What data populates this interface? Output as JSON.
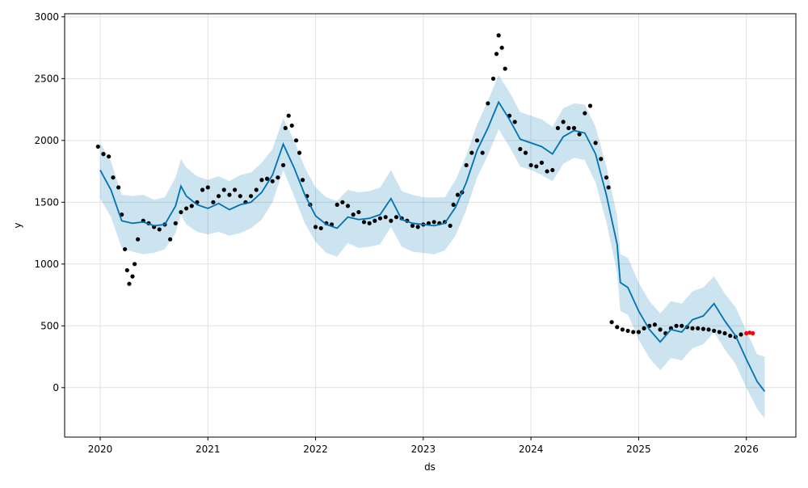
{
  "chart_data": {
    "type": "forecast",
    "xlabel": "ds",
    "ylabel": "y",
    "xlim": [
      2019.67,
      2026.46
    ],
    "ylim": [
      -400,
      3025
    ],
    "xticks": [
      2020,
      2021,
      2022,
      2023,
      2024,
      2025,
      2026
    ],
    "yticks": [
      0,
      500,
      1000,
      1500,
      2000,
      2500,
      3000
    ],
    "grid": true,
    "observed": {
      "color": "#000000",
      "x": [
        2019.98,
        2020.03,
        2020.08,
        2020.12,
        2020.17,
        2020.2,
        2020.23,
        2020.25,
        2020.27,
        2020.3,
        2020.32,
        2020.35,
        2020.4,
        2020.45,
        2020.5,
        2020.55,
        2020.6,
        2020.65,
        2020.7,
        2020.75,
        2020.8,
        2020.85,
        2020.9,
        2020.95,
        2021.0,
        2021.05,
        2021.1,
        2021.15,
        2021.2,
        2021.25,
        2021.3,
        2021.35,
        2021.4,
        2021.45,
        2021.5,
        2021.55,
        2021.6,
        2021.65,
        2021.7,
        2021.72,
        2021.75,
        2021.78,
        2021.82,
        2021.85,
        2021.88,
        2021.92,
        2021.95,
        2022.0,
        2022.05,
        2022.1,
        2022.15,
        2022.2,
        2022.25,
        2022.3,
        2022.35,
        2022.4,
        2022.45,
        2022.5,
        2022.55,
        2022.6,
        2022.65,
        2022.7,
        2022.75,
        2022.8,
        2022.85,
        2022.9,
        2022.95,
        2023.0,
        2023.05,
        2023.1,
        2023.15,
        2023.2,
        2023.25,
        2023.28,
        2023.32,
        2023.36,
        2023.4,
        2023.45,
        2023.5,
        2023.55,
        2023.6,
        2023.65,
        2023.68,
        2023.7,
        2023.73,
        2023.76,
        2023.8,
        2023.85,
        2023.9,
        2023.95,
        2024.0,
        2024.05,
        2024.1,
        2024.15,
        2024.2,
        2024.25,
        2024.3,
        2024.35,
        2024.4,
        2024.45,
        2024.5,
        2024.55,
        2024.6,
        2024.65,
        2024.7,
        2024.72,
        2024.75,
        2024.8,
        2024.85,
        2024.9,
        2024.95,
        2025.0,
        2025.05,
        2025.1,
        2025.15,
        2025.2,
        2025.25,
        2025.3,
        2025.35,
        2025.4,
        2025.45,
        2025.5,
        2025.55,
        2025.6,
        2025.65,
        2025.7,
        2025.75,
        2025.8,
        2025.85,
        2025.9,
        2025.95
      ],
      "values": [
        1950,
        1890,
        1870,
        1700,
        1620,
        1400,
        1120,
        950,
        840,
        900,
        1000,
        1200,
        1350,
        1330,
        1300,
        1280,
        1320,
        1200,
        1330,
        1420,
        1450,
        1470,
        1500,
        1600,
        1620,
        1500,
        1550,
        1600,
        1560,
        1600,
        1550,
        1500,
        1550,
        1600,
        1680,
        1690,
        1670,
        1700,
        1800,
        2100,
        2200,
        2120,
        2000,
        1900,
        1680,
        1550,
        1480,
        1300,
        1290,
        1330,
        1320,
        1480,
        1500,
        1470,
        1400,
        1420,
        1340,
        1330,
        1350,
        1370,
        1380,
        1350,
        1380,
        1370,
        1350,
        1310,
        1300,
        1320,
        1330,
        1340,
        1330,
        1340,
        1310,
        1480,
        1560,
        1580,
        1800,
        1900,
        2000,
        1900,
        2300,
        2500,
        2700,
        2850,
        2750,
        2580,
        2200,
        2150,
        1930,
        1900,
        1800,
        1790,
        1820,
        1750,
        1760,
        2100,
        2150,
        2100,
        2100,
        2050,
        2220,
        2280,
        1980,
        1850,
        1700,
        1620,
        530,
        490,
        470,
        460,
        450,
        450,
        480,
        500,
        510,
        470,
        440,
        480,
        500,
        500,
        490,
        480,
        480,
        475,
        470,
        460,
        450,
        440,
        420,
        410,
        430
      ]
    },
    "recent": {
      "color": "#ff0000",
      "x": [
        2026.0,
        2026.03,
        2026.06
      ],
      "values": [
        440,
        445,
        440
      ]
    },
    "forecast": {
      "color": "#0072b2",
      "band_color": "#0072b2",
      "x": [
        2020.0,
        2020.1,
        2020.2,
        2020.3,
        2020.4,
        2020.5,
        2020.6,
        2020.7,
        2020.75,
        2020.8,
        2020.9,
        2021.0,
        2021.1,
        2021.2,
        2021.3,
        2021.4,
        2021.5,
        2021.6,
        2021.7,
        2021.8,
        2021.9,
        2022.0,
        2022.1,
        2022.2,
        2022.3,
        2022.4,
        2022.5,
        2022.6,
        2022.7,
        2022.8,
        2022.9,
        2023.0,
        2023.1,
        2023.2,
        2023.3,
        2023.4,
        2023.5,
        2023.6,
        2023.7,
        2023.8,
        2023.9,
        2024.0,
        2024.1,
        2024.2,
        2024.3,
        2024.4,
        2024.5,
        2024.6,
        2024.7,
        2024.8,
        2024.83,
        2024.9,
        2025.0,
        2025.1,
        2025.2,
        2025.3,
        2025.4,
        2025.5,
        2025.6,
        2025.7,
        2025.8,
        2025.9,
        2026.0,
        2026.1,
        2026.17
      ],
      "values": [
        1760,
        1600,
        1350,
        1330,
        1340,
        1310,
        1320,
        1470,
        1630,
        1550,
        1480,
        1450,
        1490,
        1440,
        1480,
        1500,
        1580,
        1720,
        1970,
        1780,
        1560,
        1390,
        1320,
        1290,
        1380,
        1360,
        1370,
        1400,
        1530,
        1360,
        1330,
        1320,
        1310,
        1330,
        1460,
        1660,
        1920,
        2100,
        2310,
        2170,
        2010,
        1980,
        1950,
        1890,
        2030,
        2080,
        2060,
        1890,
        1560,
        1160,
        850,
        810,
        620,
        470,
        370,
        470,
        450,
        550,
        580,
        680,
        540,
        420,
        230,
        50,
        -30
      ],
      "upper": [
        1980,
        1830,
        1560,
        1550,
        1560,
        1520,
        1540,
        1700,
        1850,
        1780,
        1710,
        1680,
        1710,
        1670,
        1720,
        1740,
        1820,
        1930,
        2180,
        2000,
        1780,
        1620,
        1540,
        1510,
        1600,
        1580,
        1590,
        1620,
        1760,
        1590,
        1560,
        1540,
        1540,
        1540,
        1680,
        1880,
        2130,
        2320,
        2530,
        2390,
        2230,
        2200,
        2170,
        2110,
        2260,
        2300,
        2290,
        2110,
        1790,
        1390,
        1080,
        1050,
        850,
        700,
        600,
        700,
        680,
        780,
        810,
        900,
        760,
        650,
        460,
        270,
        250
      ],
      "lower": [
        1530,
        1380,
        1130,
        1100,
        1080,
        1090,
        1120,
        1250,
        1400,
        1320,
        1260,
        1240,
        1260,
        1230,
        1250,
        1290,
        1360,
        1500,
        1760,
        1550,
        1330,
        1180,
        1090,
        1060,
        1170,
        1130,
        1140,
        1160,
        1300,
        1140,
        1100,
        1090,
        1080,
        1110,
        1230,
        1440,
        1700,
        1880,
        2090,
        1950,
        1790,
        1760,
        1720,
        1670,
        1810,
        1860,
        1840,
        1660,
        1340,
        930,
        620,
        590,
        390,
        240,
        140,
        240,
        220,
        320,
        350,
        450,
        310,
        190,
        0,
        -170,
        -250
      ]
    }
  }
}
